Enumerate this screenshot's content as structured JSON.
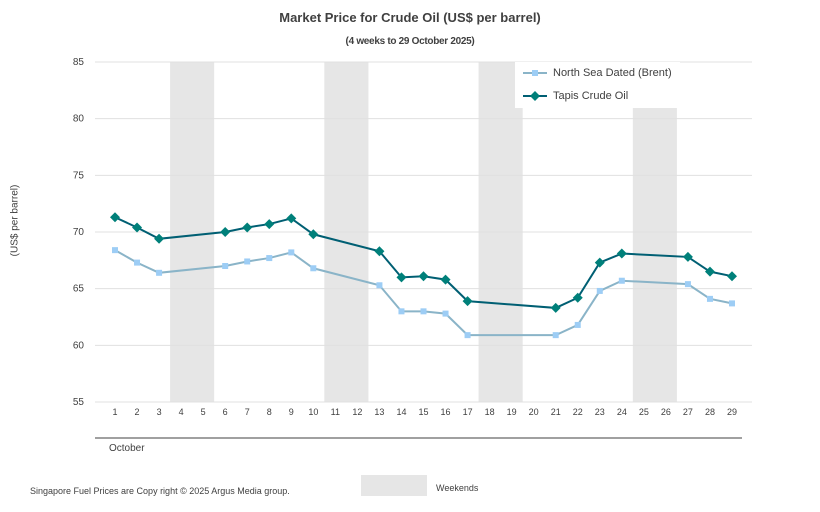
{
  "chart_data": {
    "type": "line",
    "title": "Market Price for Crude  Oil (US$ per barrel)",
    "subtitle": "(4 weeks to 29 October 2025)",
    "ylabel": "(US$ per barrel)",
    "xlabel": "October",
    "ylim": [
      55,
      85
    ],
    "yticks": [
      55,
      60,
      65,
      70,
      75,
      80,
      85
    ],
    "x": [
      1,
      2,
      3,
      4,
      5,
      6,
      7,
      8,
      9,
      10,
      11,
      12,
      13,
      14,
      15,
      16,
      17,
      18,
      19,
      20,
      21,
      22,
      23,
      24,
      25,
      26,
      27,
      28,
      29
    ],
    "weekends": [
      [
        4,
        5
      ],
      [
        11,
        12
      ],
      [
        18,
        19
      ],
      [
        25,
        26
      ]
    ],
    "weekend_label": "Weekends",
    "grid": true,
    "legend_position": "top-right",
    "series": [
      {
        "name": "North Sea Dated (Brent)",
        "color": "#8ab4c8",
        "marker_color": "#9dcdf5",
        "marker": "square",
        "points": [
          [
            1,
            68.4
          ],
          [
            2,
            67.3
          ],
          [
            3,
            66.4
          ],
          [
            6,
            67.0
          ],
          [
            7,
            67.4
          ],
          [
            8,
            67.7
          ],
          [
            9,
            68.2
          ],
          [
            10,
            66.8
          ],
          [
            13,
            65.3
          ],
          [
            14,
            63.0
          ],
          [
            15,
            63.0
          ],
          [
            16,
            62.8
          ],
          [
            17,
            60.9
          ],
          [
            21,
            60.9
          ],
          [
            22,
            61.8
          ],
          [
            23,
            64.8
          ],
          [
            24,
            65.7
          ],
          [
            27,
            65.4
          ],
          [
            28,
            64.1
          ],
          [
            29,
            63.7
          ]
        ]
      },
      {
        "name": "Tapis Crude Oil",
        "color": "#005f73",
        "marker_color": "#00807a",
        "marker": "diamond",
        "points": [
          [
            1,
            71.3
          ],
          [
            2,
            70.4
          ],
          [
            3,
            69.4
          ],
          [
            6,
            70.0
          ],
          [
            7,
            70.4
          ],
          [
            8,
            70.7
          ],
          [
            9,
            71.2
          ],
          [
            10,
            69.8
          ],
          [
            13,
            68.3
          ],
          [
            14,
            66.0
          ],
          [
            15,
            66.1
          ],
          [
            16,
            65.8
          ],
          [
            17,
            63.9
          ],
          [
            21,
            63.3
          ],
          [
            22,
            64.2
          ],
          [
            23,
            67.3
          ],
          [
            24,
            68.1
          ],
          [
            27,
            67.8
          ],
          [
            28,
            66.5
          ],
          [
            29,
            66.1
          ]
        ]
      }
    ]
  },
  "footer": "Singapore  Fuel Prices are  Copy right © 2025 Argus Media  group."
}
